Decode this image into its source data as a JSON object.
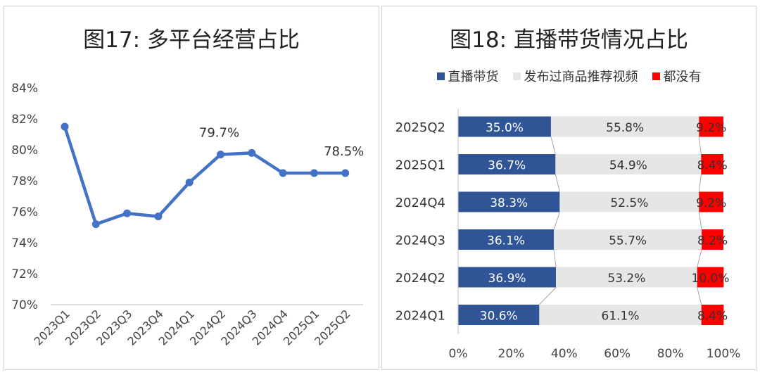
{
  "chart_data": [
    {
      "type": "line",
      "title": "图17: 多平台经营占比",
      "categories": [
        "2023Q1",
        "2023Q2",
        "2023Q3",
        "2023Q4",
        "2024Q1",
        "2024Q2",
        "2024Q3",
        "2024Q4",
        "2025Q1",
        "2025Q2"
      ],
      "values": [
        81.5,
        75.2,
        75.9,
        75.7,
        77.9,
        79.7,
        79.8,
        78.5,
        78.5,
        78.5
      ],
      "data_labels": [
        {
          "index": 5,
          "text": "79.7%"
        },
        {
          "index": 9,
          "text": "78.5%"
        }
      ],
      "y_ticks": [
        "84%",
        "82%",
        "80%",
        "78%",
        "76%",
        "74%",
        "72%",
        "70%"
      ],
      "ylim": [
        70,
        84
      ],
      "color": "#4472C4",
      "grid": false,
      "legend": "none"
    },
    {
      "type": "bar",
      "orientation": "horizontal",
      "stacked": "100%",
      "title": "图18: 直播带货情况占比",
      "categories": [
        "2025Q2",
        "2025Q1",
        "2024Q4",
        "2024Q3",
        "2024Q2",
        "2024Q1"
      ],
      "series": [
        {
          "name": "直播带货",
          "color": "#2F5597",
          "values": [
            35.0,
            36.7,
            38.3,
            36.1,
            36.9,
            30.6
          ],
          "labels": [
            "35.0%",
            "36.7%",
            "38.3%",
            "36.1%",
            "36.9%",
            "30.6%"
          ]
        },
        {
          "name": "发布过商品推荐视频",
          "color": "#E7E6E6",
          "values": [
            55.8,
            54.9,
            52.5,
            55.7,
            53.2,
            61.1
          ],
          "labels": [
            "55.8%",
            "54.9%",
            "52.5%",
            "55.7%",
            "53.2%",
            "61.1%"
          ]
        },
        {
          "name": "都没有",
          "color": "#FF0000",
          "values": [
            9.2,
            8.4,
            9.2,
            8.2,
            10.0,
            8.4
          ],
          "labels": [
            "9.2%",
            "8.4%",
            "9.2%",
            "8.2%",
            "10.0%",
            "8.4%"
          ]
        }
      ],
      "x_ticks": [
        "0%",
        "20%",
        "40%",
        "60%",
        "80%",
        "100%"
      ],
      "xlim": [
        0,
        100
      ],
      "legend": "top",
      "grid": false
    }
  ]
}
